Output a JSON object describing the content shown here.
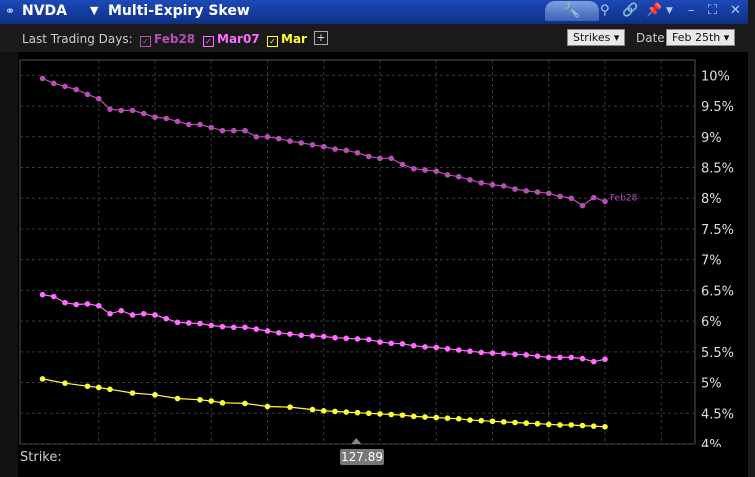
{
  "title_bar": {
    "symbol": "NVDA",
    "title": "Multi-Expiry Skew"
  },
  "toolbar": {
    "last_trading_days_label": "Last Trading Days:",
    "legend": [
      {
        "label": "Feb28",
        "color": "#b44fb4",
        "checked": true
      },
      {
        "label": "Mar07",
        "color": "#ff6cff",
        "checked": true
      },
      {
        "label": "Mar",
        "color": "#ffff33",
        "checked": true
      }
    ],
    "add_label": "+",
    "mode_select": "Strikes",
    "date_label": "Date:",
    "date_select": "Feb 25th"
  },
  "strike_bar": {
    "label": "Strike:",
    "cursor_value": "127.89"
  },
  "chart_data": {
    "type": "line",
    "xlim": [
      98,
      158
    ],
    "ylim": [
      4,
      10.25
    ],
    "x_ticks": [
      105,
      110,
      115,
      120,
      125,
      130,
      135,
      140,
      145,
      150,
      155
    ],
    "y_ticks": [
      "4%",
      "4.5%",
      "5%",
      "5.5%",
      "6%",
      "6.5%",
      "7%",
      "7.5%",
      "8%",
      "8.5%",
      "9%",
      "9.5%",
      "10%"
    ],
    "grid": true,
    "series": [
      {
        "name": "Feb28",
        "color": "#b44fb4",
        "end_label": "Feb28",
        "x": [
          100,
          101,
          102,
          103,
          104,
          105,
          106,
          107,
          108,
          109,
          110,
          111,
          112,
          113,
          114,
          115,
          116,
          117,
          118,
          119,
          120,
          121,
          122,
          123,
          124,
          125,
          126,
          127,
          128,
          129,
          130,
          131,
          132,
          133,
          134,
          135,
          136,
          137,
          138,
          139,
          140,
          141,
          142,
          143,
          144,
          145,
          146,
          147,
          148,
          149,
          150
        ],
        "y": [
          9.95,
          9.87,
          9.82,
          9.77,
          9.69,
          9.62,
          9.45,
          9.43,
          9.43,
          9.38,
          9.32,
          9.3,
          9.25,
          9.2,
          9.2,
          9.15,
          9.1,
          9.1,
          9.1,
          9.0,
          9.0,
          8.97,
          8.93,
          8.9,
          8.87,
          8.84,
          8.8,
          8.78,
          8.74,
          8.68,
          8.65,
          8.65,
          8.55,
          8.48,
          8.46,
          8.44,
          8.38,
          8.35,
          8.3,
          8.25,
          8.22,
          8.2,
          8.15,
          8.12,
          8.1,
          8.08,
          8.03,
          8.0,
          7.88,
          8.01,
          7.95
        ]
      },
      {
        "name": "Mar07",
        "color": "#ff6cff",
        "x": [
          100,
          101,
          102,
          103,
          104,
          105,
          106,
          107,
          108,
          109,
          110,
          111,
          112,
          113,
          114,
          115,
          116,
          117,
          118,
          119,
          120,
          121,
          122,
          123,
          124,
          125,
          126,
          127,
          128,
          129,
          130,
          131,
          132,
          133,
          134,
          135,
          136,
          137,
          138,
          139,
          140,
          141,
          142,
          143,
          144,
          145,
          146,
          147,
          148,
          149,
          150
        ],
        "y": [
          6.43,
          6.4,
          6.3,
          6.27,
          6.28,
          6.25,
          6.12,
          6.17,
          6.1,
          6.12,
          6.1,
          6.04,
          5.98,
          5.97,
          5.96,
          5.93,
          5.91,
          5.9,
          5.9,
          5.87,
          5.84,
          5.81,
          5.79,
          5.77,
          5.76,
          5.75,
          5.73,
          5.72,
          5.71,
          5.7,
          5.66,
          5.64,
          5.63,
          5.6,
          5.58,
          5.57,
          5.55,
          5.53,
          5.51,
          5.49,
          5.48,
          5.47,
          5.46,
          5.45,
          5.43,
          5.41,
          5.41,
          5.41,
          5.39,
          5.34,
          5.38
        ]
      },
      {
        "name": "Mar",
        "color": "#ffff33",
        "x": [
          100,
          102,
          104,
          105,
          106,
          108,
          110,
          112,
          114,
          115,
          116,
          118,
          120,
          122,
          124,
          125,
          126,
          127,
          128,
          129,
          130,
          131,
          132,
          133,
          134,
          135,
          136,
          137,
          138,
          139,
          140,
          141,
          142,
          143,
          144,
          145,
          146,
          147,
          148,
          149,
          150
        ],
        "y": [
          5.06,
          4.99,
          4.94,
          4.92,
          4.89,
          4.83,
          4.8,
          4.74,
          4.72,
          4.7,
          4.67,
          4.66,
          4.61,
          4.6,
          4.56,
          4.54,
          4.53,
          4.52,
          4.51,
          4.5,
          4.49,
          4.48,
          4.47,
          4.45,
          4.44,
          4.43,
          4.42,
          4.41,
          4.39,
          4.38,
          4.37,
          4.36,
          4.35,
          4.34,
          4.33,
          4.32,
          4.31,
          4.31,
          4.3,
          4.29,
          4.28
        ]
      }
    ]
  }
}
